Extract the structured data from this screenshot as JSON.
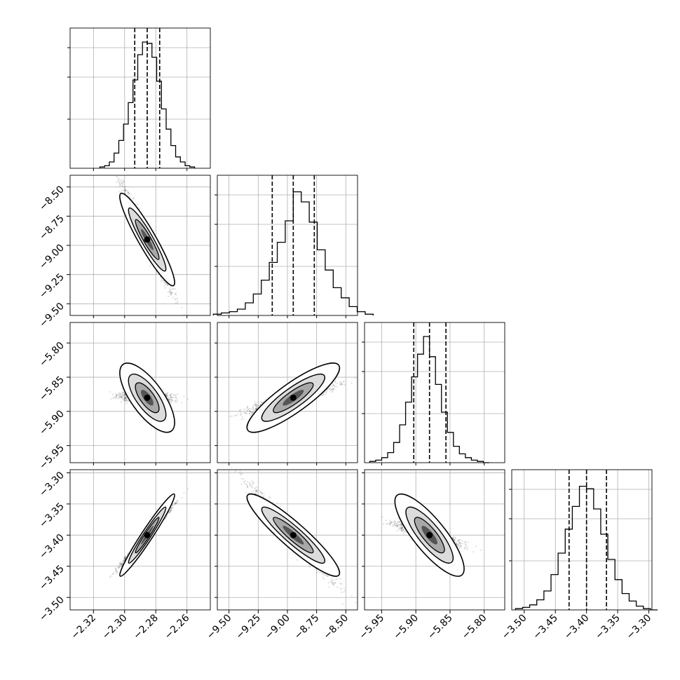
{
  "chart_data": {
    "type": "corner",
    "grid": true,
    "histogram_style": "step",
    "quantile_lines": "dashed",
    "scatter_color": "#000000",
    "contour_color": "#000000",
    "parameters": [
      {
        "range": [
          -2.335,
          -2.245
        ],
        "ticks": [
          -2.32,
          -2.3,
          -2.28,
          -2.26
        ],
        "tick_labels": [
          "−2.32",
          "−2.30",
          "−2.28",
          "−2.26"
        ],
        "quantiles": [
          -2.2935,
          -2.2855,
          -2.2775
        ],
        "median": -2.2855,
        "std": 0.008,
        "hist_counts": [
          0.01,
          0.02,
          0.05,
          0.12,
          0.22,
          0.35,
          0.52,
          0.7,
          0.9,
          1.0,
          0.99,
          0.88,
          0.69,
          0.47,
          0.31,
          0.18,
          0.09,
          0.05,
          0.02,
          0.01
        ]
      },
      {
        "range": [
          -9.6,
          -8.4
        ],
        "ticks": [
          -9.5,
          -9.25,
          -9.0,
          -8.75,
          -8.5
        ],
        "tick_labels": [
          "−9.50",
          "−9.25",
          "−9.00",
          "−8.75",
          "−8.50"
        ],
        "quantiles": [
          -9.13,
          -8.95,
          -8.77
        ],
        "median": -8.95,
        "std": 0.18,
        "hist_counts": [
          0.01,
          0.02,
          0.03,
          0.05,
          0.1,
          0.17,
          0.28,
          0.42,
          0.58,
          0.75,
          0.98,
          0.9,
          0.74,
          0.52,
          0.36,
          0.22,
          0.14,
          0.07,
          0.03,
          0.01
        ]
      },
      {
        "range": [
          -5.975,
          -5.77
        ],
        "ticks": [
          -5.95,
          -5.9,
          -5.85,
          -5.8
        ],
        "tick_labels": [
          "−5.95",
          "−5.90",
          "−5.85",
          "−5.80"
        ],
        "quantiles": [
          -5.903,
          -5.88,
          -5.856
        ],
        "median": -5.88,
        "std": 0.023,
        "hist_counts": [
          0.01,
          0.02,
          0.04,
          0.08,
          0.16,
          0.3,
          0.48,
          0.68,
          0.86,
          1.0,
          0.84,
          0.62,
          0.4,
          0.24,
          0.13,
          0.07,
          0.04,
          0.02,
          0.01,
          0.0
        ]
      },
      {
        "range": [
          -3.52,
          -3.295
        ],
        "ticks": [
          -3.5,
          -3.45,
          -3.4,
          -3.35,
          -3.3
        ],
        "tick_labels": [
          "−3.50",
          "−3.45",
          "−3.40",
          "−3.35",
          "−3.30"
        ],
        "quantiles": [
          -3.428,
          -3.4,
          -3.368
        ],
        "median": -3.4,
        "std": 0.03,
        "hist_counts": [
          0.01,
          0.02,
          0.04,
          0.08,
          0.15,
          0.28,
          0.45,
          0.64,
          0.82,
          0.98,
          0.96,
          0.8,
          0.6,
          0.4,
          0.24,
          0.13,
          0.07,
          0.03,
          0.01,
          0.0
        ]
      }
    ],
    "correlations": {
      "1_0": -0.93,
      "2_0": -0.72,
      "2_1": 0.86,
      "3_0": 0.97,
      "3_1": -0.92,
      "3_2": -0.82
    }
  }
}
